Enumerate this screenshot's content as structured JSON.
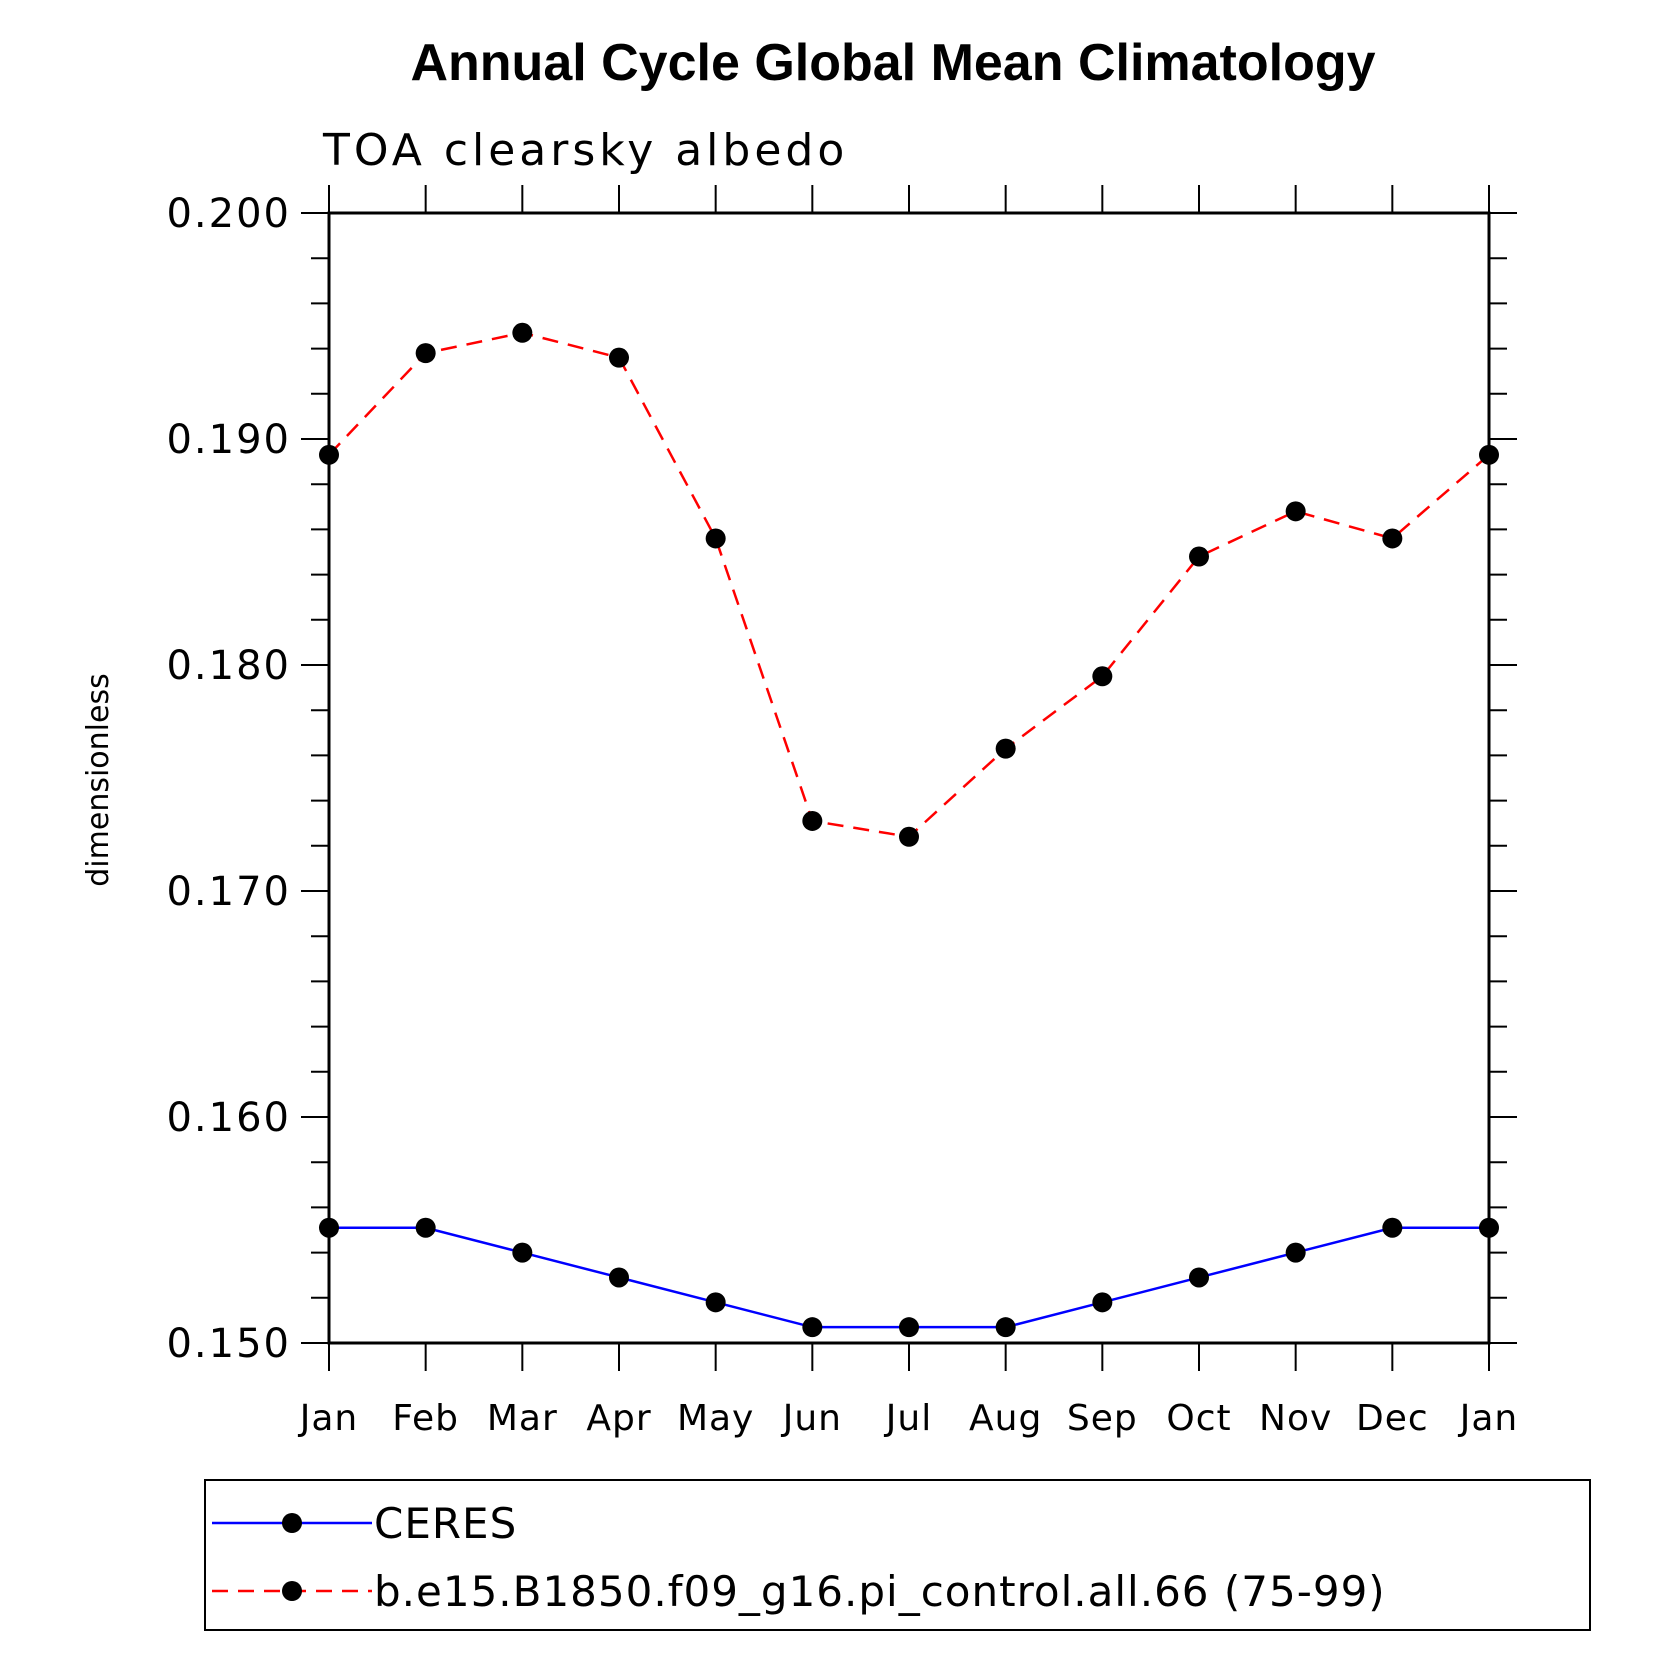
{
  "chart_data": {
    "type": "line",
    "title": "Annual Cycle Global Mean Climatology",
    "subtitle": "TOA clearsky albedo",
    "xlabel": "",
    "ylabel": "dimensionless",
    "categories": [
      "Jan",
      "Feb",
      "Mar",
      "Apr",
      "May",
      "Jun",
      "Jul",
      "Aug",
      "Sep",
      "Oct",
      "Nov",
      "Dec",
      "Jan"
    ],
    "ylim": [
      0.15,
      0.2
    ],
    "yticks": [
      "0.200",
      "0.190",
      "0.180",
      "0.170",
      "0.160",
      "0.150"
    ],
    "ytick_values": [
      0.2,
      0.19,
      0.18,
      0.17,
      0.16,
      0.15
    ],
    "grid": false,
    "legend_position": "bottom",
    "series": [
      {
        "name": "CERES",
        "color": "#0000ff",
        "style": "solid",
        "marker": "circle",
        "values": [
          0.1551,
          0.1551,
          0.154,
          0.1529,
          0.1518,
          0.1507,
          0.1507,
          0.1507,
          0.1518,
          0.1529,
          0.154,
          0.1551,
          0.1551
        ]
      },
      {
        "name": "b.e15.B1850.f09_g16.pi_control.all.66 (75-99)",
        "color": "#ff0000",
        "style": "dashed",
        "marker": "circle",
        "values": [
          0.1893,
          0.1938,
          0.1947,
          0.1936,
          0.1856,
          0.1731,
          0.1724,
          0.1763,
          0.1795,
          0.1848,
          0.1868,
          0.1856,
          0.1893
        ]
      }
    ]
  }
}
